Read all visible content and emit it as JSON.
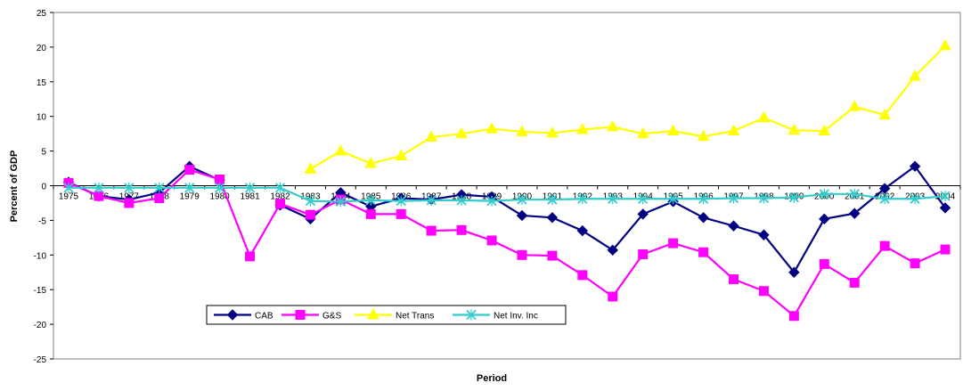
{
  "chart_data": {
    "type": "line",
    "title": "",
    "xlabel": "Period",
    "ylabel": "Percent of GDP",
    "ylim": [
      -25,
      25
    ],
    "yticks": [
      25,
      20,
      15,
      10,
      5,
      0,
      -5,
      -10,
      -15,
      -20,
      -25
    ],
    "grid": false,
    "legend_position": "bottom-center (inside plot)",
    "categories": [
      "1975",
      "1976",
      "1977",
      "1978",
      "1979",
      "1980",
      "1981",
      "1982",
      "1983",
      "1984",
      "1985",
      "1986",
      "1987",
      "1988",
      "1989",
      "1990",
      "1991",
      "1992",
      "1993",
      "1994",
      "1995",
      "1996",
      "1997",
      "1998",
      "1999",
      "2000",
      "2001",
      "2002",
      "2003",
      "2004"
    ],
    "series": [
      {
        "name": "CAB",
        "color": "#000080",
        "marker": "diamond",
        "values": [
          0.5,
          -1.5,
          -2.0,
          -1.0,
          2.8,
          0.8,
          null,
          -2.8,
          -4.8,
          -1.0,
          -3.0,
          -1.8,
          -2.0,
          -1.3,
          -1.6,
          -4.3,
          -4.6,
          -6.5,
          -9.3,
          -4.1,
          -2.3,
          -4.6,
          -5.8,
          -7.1,
          -12.5,
          -4.8,
          -4.0,
          -0.4,
          2.8,
          -3.2
        ]
      },
      {
        "name": "G&S",
        "color": "#FF00FF",
        "marker": "square",
        "values": [
          0.4,
          -1.5,
          -2.5,
          -1.8,
          2.3,
          0.9,
          -10.2,
          -2.6,
          -4.2,
          -2.0,
          -4.1,
          -4.1,
          -6.5,
          -6.4,
          -7.9,
          -10.0,
          -10.1,
          -12.9,
          -16.0,
          -9.9,
          -8.3,
          -9.6,
          -13.5,
          -15.2,
          -18.8,
          -11.3,
          -14.0,
          -8.7,
          -11.2,
          -9.2
        ]
      },
      {
        "name": "Net Trans",
        "color": "#FFFF00",
        "marker": "triangle",
        "values": [
          null,
          null,
          null,
          null,
          null,
          null,
          null,
          null,
          2.4,
          5.0,
          3.2,
          4.3,
          7.0,
          7.5,
          8.2,
          7.8,
          7.6,
          8.1,
          8.5,
          7.5,
          7.9,
          7.1,
          7.9,
          9.8,
          8.0,
          7.9,
          11.4,
          10.2,
          15.8,
          20.2
        ]
      },
      {
        "name": "Net Inv. Inc",
        "color": "#33CCCC",
        "marker": "x",
        "values": [
          -0.3,
          -0.3,
          -0.3,
          -0.3,
          -0.3,
          -0.3,
          -0.3,
          -0.3,
          -2.2,
          -2.3,
          -2.1,
          -2.2,
          -2.1,
          -2.1,
          -2.2,
          -2.0,
          -2.0,
          -1.9,
          -1.9,
          -1.9,
          -1.9,
          -1.9,
          -1.8,
          -1.8,
          -1.7,
          -1.2,
          -1.2,
          -1.9,
          -1.9,
          -1.5
        ]
      }
    ]
  }
}
